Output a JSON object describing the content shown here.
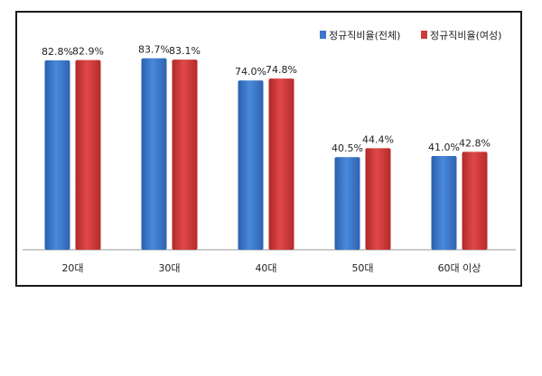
{
  "chart_data": {
    "type": "bar",
    "categories": [
      "20대",
      "30대",
      "40대",
      "50대",
      "60대 이상"
    ],
    "series": [
      {
        "name": "정규직비율(전체)",
        "values": [
          82.8,
          83.7,
          74.0,
          40.5,
          41.0
        ],
        "labels": [
          "82.8%",
          "83.7%",
          "74.0%",
          "40.5%",
          "41.0%"
        ],
        "color": "#3d77c9"
      },
      {
        "name": "정규직비율(여성)",
        "values": [
          82.9,
          83.1,
          74.8,
          44.4,
          42.8
        ],
        "labels": [
          "82.9%",
          "83.1%",
          "74.8%",
          "44.4%",
          "42.8%"
        ],
        "color": "#cf3a3a"
      }
    ],
    "ylim": [
      0,
      100
    ],
    "grid": false,
    "legend_position": "top-right"
  }
}
